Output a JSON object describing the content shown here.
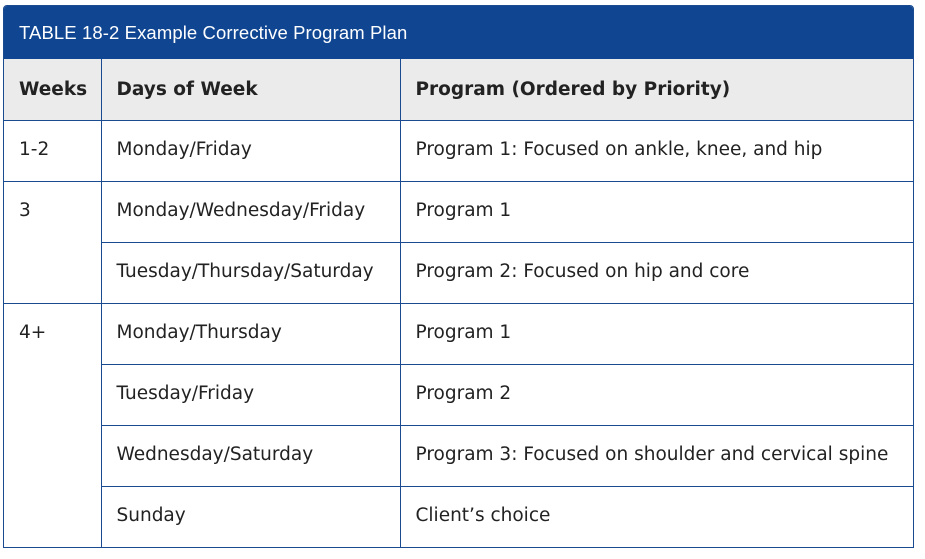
{
  "caption": "TABLE 18-2 Example Corrective Program Plan",
  "headers": {
    "weeks": "Weeks",
    "days": "Days of Week",
    "program": "Program (Ordered by Priority)"
  },
  "groups": [
    {
      "week": "1-2",
      "rows": [
        {
          "days": "Monday/Friday",
          "program": "Program 1: Focused on ankle, knee, and hip"
        }
      ]
    },
    {
      "week": "3",
      "rows": [
        {
          "days": "Monday/Wednesday/Friday",
          "program": "Program 1"
        },
        {
          "days": "Tuesday/Thursday/Saturday",
          "program": "Program 2: Focused on hip and core"
        }
      ]
    },
    {
      "week": "4+",
      "rows": [
        {
          "days": "Monday/Thursday",
          "program": "Program 1"
        },
        {
          "days": "Tuesday/Friday",
          "program": "Program 2"
        },
        {
          "days": "Wednesday/Saturday",
          "program": "Program 3: Focused on shoulder and cervical spine"
        },
        {
          "days": "Sunday",
          "program": "Client’s choice"
        }
      ]
    }
  ]
}
